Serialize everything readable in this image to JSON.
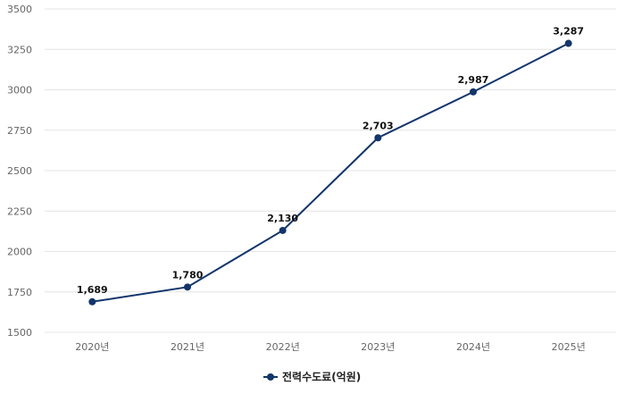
{
  "chart_data": {
    "type": "line",
    "categories": [
      "2020년",
      "2021년",
      "2022년",
      "2023년",
      "2024년",
      "2025년"
    ],
    "series": [
      {
        "name": "전력수도료(억원)",
        "values": [
          1689,
          1780,
          2130,
          2703,
          2987,
          3287
        ],
        "labels": [
          "1,689",
          "1,780",
          "2,130",
          "2,703",
          "2,987",
          "3,287"
        ],
        "color": "#12356b"
      }
    ],
    "yticks": [
      "1500",
      "1750",
      "2000",
      "2250",
      "2500",
      "2750",
      "3000",
      "3250",
      "3500"
    ],
    "ylim": [
      1500,
      3500
    ],
    "grid": true,
    "legend_position": "bottom-center",
    "title": "",
    "xlabel": "",
    "ylabel": ""
  }
}
